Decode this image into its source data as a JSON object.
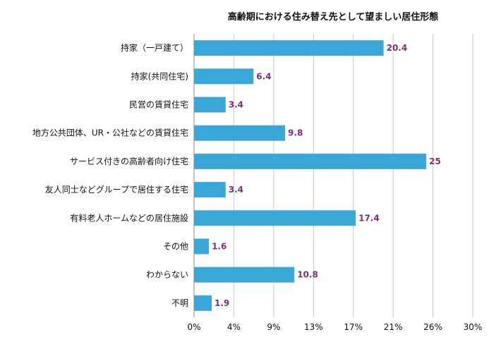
{
  "chart_data": {
    "type": "bar",
    "orientation": "horizontal",
    "title": "高齢期における住み替え先として望ましい居住形態",
    "categories": [
      "持家（一戸建て）",
      "持家(共同住宅)",
      "民営の賃貸住宅",
      "地方公共団体、UR・公社などの賃貸住宅",
      "サービス付きの高齢者向け住宅",
      "友人同士などグループで居住する住宅",
      "有料老人ホームなどの居住施設",
      "その他",
      "わからない",
      "不明"
    ],
    "values": [
      20.4,
      6.4,
      3.4,
      9.8,
      25,
      3.4,
      17.4,
      1.6,
      10.8,
      1.9
    ],
    "value_labels": [
      "20.4",
      "6.4",
      "3.4",
      "9.8",
      "25",
      "3.4",
      "17.4",
      "1.6",
      "10.8",
      "1.9"
    ],
    "xlim": [
      0,
      30
    ],
    "x_tick_labels": [
      "0%",
      "4%",
      "9%",
      "13%",
      "17%",
      "21%",
      "26%",
      "30%"
    ],
    "grid": true,
    "legend": "none",
    "bar_color": "#3aa7d9",
    "value_label_color": "#7a2e7a"
  }
}
